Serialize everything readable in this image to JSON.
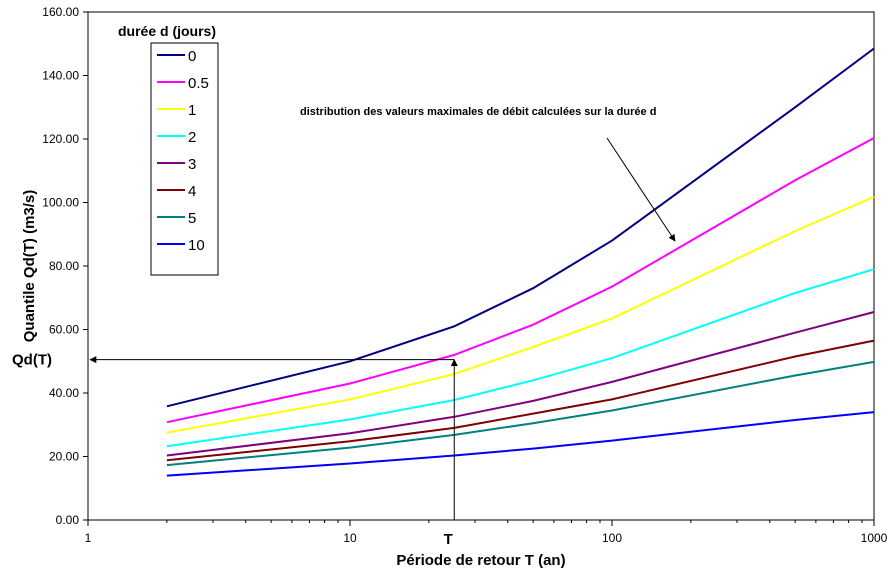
{
  "chart_data": {
    "type": "line",
    "xscale": "log",
    "xlabel": "Période de retour T (an)",
    "ylabel": "Quantile Qd(T) (m3/s)",
    "xlim": [
      1,
      1000
    ],
    "ylim": [
      0,
      160
    ],
    "x_ticks": [
      1,
      10,
      100,
      1000
    ],
    "x_tick_labels": [
      "1",
      "10",
      "100",
      "1000"
    ],
    "y_ticks": [
      0,
      20,
      40,
      60,
      80,
      100,
      120,
      140,
      160
    ],
    "y_tick_labels": [
      "0.00",
      "20.00",
      "40.00",
      "60.00",
      "80.00",
      "100.00",
      "120.00",
      "140.00",
      "160.00"
    ],
    "grid": false,
    "legend_title": "durée d (jours)",
    "legend_position": "top-left",
    "x": [
      2,
      10,
      25,
      50,
      100,
      500,
      1000
    ],
    "series": [
      {
        "name": "0",
        "color": "#000080",
        "values": [
          35.8,
          50.0,
          61.0,
          73.0,
          88.0,
          130.0,
          148.5
        ]
      },
      {
        "name": "0.5",
        "color": "#ff00ff",
        "values": [
          30.8,
          43.0,
          52.0,
          61.5,
          73.5,
          107.0,
          120.3
        ]
      },
      {
        "name": "1",
        "color": "#ffff00",
        "values": [
          27.5,
          38.0,
          46.0,
          54.5,
          63.5,
          91.0,
          101.8
        ]
      },
      {
        "name": "2",
        "color": "#00ffff",
        "values": [
          23.2,
          31.7,
          37.8,
          44.0,
          51.0,
          71.5,
          79.0
        ]
      },
      {
        "name": "3",
        "color": "#800080",
        "values": [
          20.3,
          27.3,
          32.5,
          37.5,
          43.5,
          59.0,
          65.5
        ]
      },
      {
        "name": "4",
        "color": "#800000",
        "values": [
          18.8,
          24.8,
          29.0,
          33.5,
          38.0,
          51.5,
          56.5
        ]
      },
      {
        "name": "5",
        "color": "#008080",
        "values": [
          17.3,
          22.8,
          26.8,
          30.5,
          34.5,
          45.5,
          49.8
        ]
      },
      {
        "name": "10",
        "color": "#0000ff",
        "values": [
          14.0,
          17.8,
          20.3,
          22.5,
          25.0,
          31.5,
          34.0
        ]
      }
    ],
    "annotation": "distribution des valeurs maximales de débit calculées sur la durée d",
    "marker": {
      "t_label": "T",
      "q_label": "Qd(T)",
      "t_value": 25,
      "q_value": 50.5
    }
  }
}
